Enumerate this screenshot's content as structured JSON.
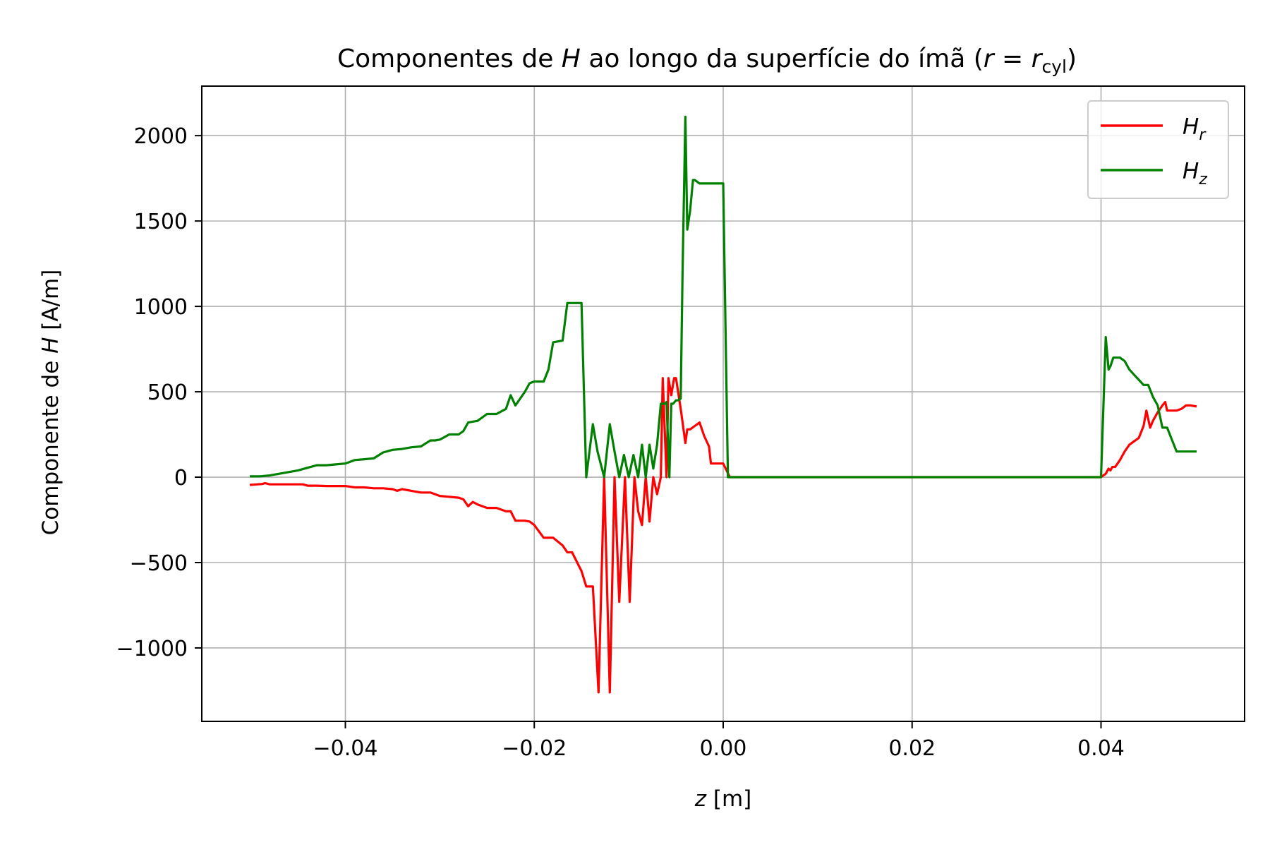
{
  "chart_data": {
    "type": "line",
    "title": {
      "prefix": "Componentes de ",
      "var": "H",
      "middle": " ao longo da superfície do ímã (",
      "r": "r",
      "eq": " = ",
      "r2": "r",
      "sub": "cyl",
      "suffix": ")"
    },
    "xlabel": {
      "var": "z",
      "unit": " [m]"
    },
    "ylabel": {
      "prefix": "Componente de ",
      "var": "H",
      "unit": " [A/m]"
    },
    "xlim": [
      -0.0552,
      0.0552
    ],
    "ylim": [
      -1430,
      2290
    ],
    "xticks": [
      -0.04,
      -0.02,
      0.0,
      0.02,
      0.04
    ],
    "xtick_labels": [
      "−0.04",
      "−0.02",
      "0.00",
      "0.02",
      "0.04"
    ],
    "yticks": [
      -1000,
      -500,
      0,
      500,
      1000,
      1500,
      2000
    ],
    "ytick_labels": [
      "−1000",
      "−500",
      "0",
      "500",
      "1000",
      "1500",
      "2000"
    ],
    "grid": true,
    "legend_position": "top-right",
    "series": [
      {
        "name": "H_r",
        "label_var": "H",
        "label_sub": "r",
        "color": "#ff0000",
        "x": [
          -0.05,
          -0.0488,
          -0.0485,
          -0.048,
          -0.0475,
          -0.047,
          -0.046,
          -0.045,
          -0.0445,
          -0.044,
          -0.043,
          -0.042,
          -0.041,
          -0.04,
          -0.039,
          -0.038,
          -0.037,
          -0.036,
          -0.035,
          -0.0345,
          -0.034,
          -0.033,
          -0.032,
          -0.031,
          -0.0305,
          -0.03,
          -0.029,
          -0.028,
          -0.0275,
          -0.027,
          -0.0265,
          -0.026,
          -0.025,
          -0.024,
          -0.023,
          -0.0225,
          -0.022,
          -0.021,
          -0.0205,
          -0.02,
          -0.019,
          -0.0185,
          -0.018,
          -0.017,
          -0.0165,
          -0.016,
          -0.015,
          -0.0145,
          -0.0138,
          -0.0132,
          -0.0126,
          -0.012,
          -0.0115,
          -0.011,
          -0.0104,
          -0.0099,
          -0.0094,
          -0.009,
          -0.0086,
          -0.0082,
          -0.0078,
          -0.0074,
          -0.007,
          -0.0066,
          -0.0064,
          -0.006,
          -0.0058,
          -0.0055,
          -0.0052,
          -0.005,
          -0.0045,
          -0.004,
          -0.0038,
          -0.0035,
          -0.003,
          -0.0025,
          -0.002,
          -0.0015,
          -0.0013,
          -0.001,
          -0.0005,
          0.0,
          0.0007,
          0.0015,
          0.02,
          0.03,
          0.0398,
          0.04,
          0.0405,
          0.0408,
          0.041,
          0.0412,
          0.0415,
          0.042,
          0.0425,
          0.043,
          0.0435,
          0.044,
          0.0445,
          0.0448,
          0.0452,
          0.0455,
          0.046,
          0.0465,
          0.0468,
          0.047,
          0.0475,
          0.048,
          0.0485,
          0.049,
          0.0495,
          0.05
        ],
        "y": [
          -45,
          -40,
          -35,
          -42,
          -42,
          -42,
          -42,
          -42,
          -42,
          -50,
          -50,
          -52,
          -52,
          -52,
          -60,
          -60,
          -65,
          -65,
          -70,
          -80,
          -70,
          -80,
          -90,
          -90,
          -100,
          -110,
          -115,
          -120,
          -130,
          -170,
          -145,
          -160,
          -180,
          -180,
          -200,
          -200,
          -255,
          -255,
          -260,
          -280,
          -355,
          -355,
          -355,
          -400,
          -440,
          -440,
          -550,
          -640,
          -640,
          -1260,
          0,
          -1260,
          0,
          -730,
          0,
          -730,
          0,
          -200,
          -280,
          0,
          -260,
          0,
          -100,
          0,
          580,
          0,
          580,
          480,
          580,
          580,
          400,
          200,
          280,
          280,
          300,
          320,
          240,
          180,
          80,
          80,
          80,
          80,
          0,
          0,
          0,
          0,
          0,
          0,
          20,
          50,
          40,
          60,
          60,
          100,
          150,
          190,
          210,
          230,
          300,
          390,
          290,
          330,
          380,
          420,
          440,
          390,
          390,
          390,
          400,
          420,
          420,
          415
        ]
      },
      {
        "name": "H_z",
        "label_var": "H",
        "label_sub": "z",
        "color": "#008000",
        "x": [
          -0.05,
          -0.049,
          -0.048,
          -0.047,
          -0.046,
          -0.045,
          -0.044,
          -0.043,
          -0.042,
          -0.041,
          -0.04,
          -0.039,
          -0.038,
          -0.037,
          -0.036,
          -0.035,
          -0.034,
          -0.033,
          -0.032,
          -0.031,
          -0.0305,
          -0.03,
          -0.029,
          -0.028,
          -0.0275,
          -0.027,
          -0.026,
          -0.025,
          -0.024,
          -0.023,
          -0.0225,
          -0.022,
          -0.021,
          -0.0205,
          -0.02,
          -0.019,
          -0.0185,
          -0.018,
          -0.017,
          -0.0165,
          -0.016,
          -0.015,
          -0.0145,
          -0.0138,
          -0.0133,
          -0.0126,
          -0.012,
          -0.0115,
          -0.011,
          -0.0105,
          -0.01,
          -0.0095,
          -0.009,
          -0.0086,
          -0.0082,
          -0.0078,
          -0.0074,
          -0.007,
          -0.0066,
          -0.0062,
          -0.006,
          -0.0057,
          -0.0055,
          -0.0053,
          -0.005,
          -0.0048,
          -0.0045,
          -0.0043,
          -0.004,
          -0.0038,
          -0.0035,
          -0.0032,
          -0.003,
          -0.0025,
          -0.002,
          -0.0015,
          -0.001,
          0.0,
          0.0005,
          0.001,
          0.01,
          0.02,
          0.03,
          0.04,
          0.0405,
          0.0408,
          0.041,
          0.0413,
          0.042,
          0.0425,
          0.043,
          0.0435,
          0.044,
          0.0445,
          0.045,
          0.0455,
          0.046,
          0.0465,
          0.047,
          0.0475,
          0.048,
          0.0485,
          0.049,
          0.0495,
          0.05
        ],
        "y": [
          5,
          5,
          10,
          20,
          30,
          40,
          55,
          70,
          70,
          75,
          80,
          100,
          105,
          110,
          145,
          160,
          165,
          175,
          180,
          215,
          215,
          220,
          250,
          250,
          270,
          320,
          330,
          370,
          370,
          400,
          480,
          420,
          500,
          550,
          560,
          560,
          630,
          790,
          800,
          1020,
          1020,
          1020,
          0,
          310,
          150,
          0,
          310,
          150,
          0,
          130,
          0,
          130,
          0,
          190,
          0,
          190,
          50,
          190,
          430,
          430,
          440,
          0,
          430,
          430,
          450,
          450,
          460,
          1200,
          2110,
          1450,
          1560,
          1740,
          1740,
          1720,
          1720,
          1720,
          1720,
          1720,
          0,
          0,
          0,
          0,
          0,
          0,
          820,
          630,
          650,
          700,
          700,
          680,
          630,
          600,
          570,
          540,
          540,
          470,
          420,
          290,
          290,
          220,
          150,
          150,
          150,
          150,
          150
        ]
      }
    ]
  }
}
